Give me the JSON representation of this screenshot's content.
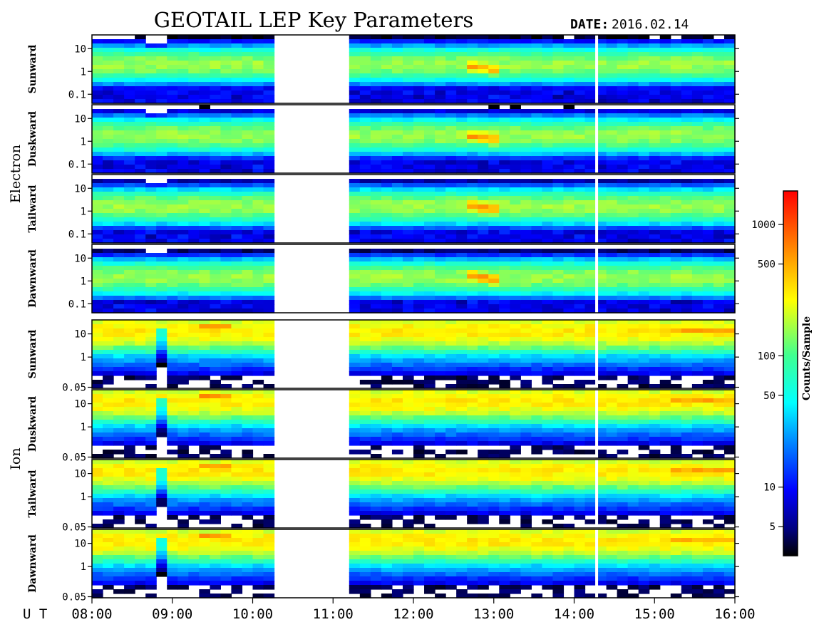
{
  "title": "GEOTAIL LEP Key Parameters",
  "date_label": "DATE:",
  "date_value": "2016.02.14",
  "time_axis_label": "U T",
  "colorbar_label": "Counts/Sample",
  "chart_data": {
    "type": "heatmap",
    "x_ticks": [
      "08:00",
      "09:00",
      "10:00",
      "11:00",
      "12:00",
      "13:00",
      "14:00",
      "15:00",
      "16:00"
    ],
    "x_range_hours": [
      8,
      16
    ],
    "data_gap_hours": [
      10.2,
      11.25
    ],
    "dropout_hours": 14.28,
    "groups": [
      {
        "name": "Electron",
        "y_ticks": [
          "10",
          "1",
          "0.1"
        ],
        "y_values": [
          10,
          1,
          0.1
        ],
        "y_range": [
          0.04,
          40
        ],
        "panels": [
          "Sunward",
          "Duskward",
          "Tailward",
          "Dawnward"
        ]
      },
      {
        "name": "Ion",
        "y_ticks": [
          "10",
          "1",
          "0.05"
        ],
        "y_values": [
          10,
          1,
          0.05
        ],
        "y_range": [
          0.045,
          40
        ],
        "panels": [
          "Sunward",
          "Duskward",
          "Tailward",
          "Dawnward"
        ]
      }
    ],
    "colorbar": {
      "scale": "log",
      "range": [
        3,
        1800
      ],
      "ticks": [
        {
          "value": 5,
          "label": "5"
        },
        {
          "value": 10,
          "label": "10"
        },
        {
          "value": 50,
          "label": "50"
        },
        {
          "value": 100,
          "label": "100"
        },
        {
          "value": 500,
          "label": "500"
        },
        {
          "value": 1000,
          "label": "1000"
        }
      ]
    }
  }
}
